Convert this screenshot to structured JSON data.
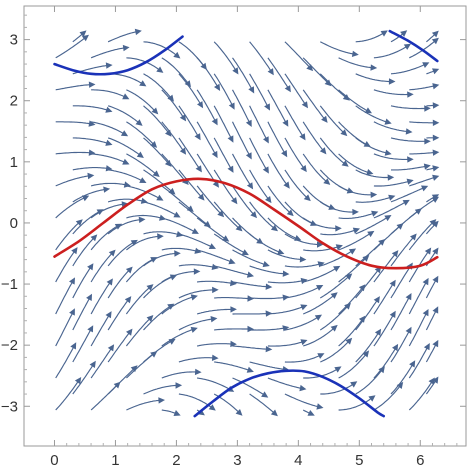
{
  "chart_data": {
    "type": "streamplot",
    "x_ticks": [
      "0",
      "1",
      "2",
      "3",
      "4",
      "5",
      "6"
    ],
    "y_ticks": [
      "3",
      "2",
      "1",
      "0",
      "−1",
      "−2",
      "−3"
    ],
    "x_tick_values": [
      0,
      1,
      2,
      3,
      4,
      5,
      6
    ],
    "y_tick_values": [
      3,
      2,
      1,
      0,
      -1,
      -2,
      -3
    ],
    "xlim": [
      -0.5,
      6.75
    ],
    "ylim": [
      -3.65,
      3.55
    ],
    "field": "dx = 1, dy = cos(x) - sin(y)",
    "stream_color": "#4a6590",
    "highlighted_curves": [
      {
        "color": "#cc1f1f",
        "points": [
          [
            0,
            -0.55
          ],
          [
            0.4,
            -0.3
          ],
          [
            0.8,
            0.0
          ],
          [
            1.2,
            0.3
          ],
          [
            1.6,
            0.55
          ],
          [
            2.0,
            0.68
          ],
          [
            2.4,
            0.72
          ],
          [
            2.8,
            0.65
          ],
          [
            3.2,
            0.48
          ],
          [
            3.6,
            0.22
          ],
          [
            4.0,
            -0.05
          ],
          [
            4.4,
            -0.33
          ],
          [
            4.8,
            -0.55
          ],
          [
            5.2,
            -0.7
          ],
          [
            5.6,
            -0.74
          ],
          [
            6.0,
            -0.7
          ],
          [
            6.28,
            -0.56
          ]
        ]
      },
      {
        "color": "#1a32b8",
        "points": [
          [
            0,
            2.6
          ],
          [
            0.3,
            2.5
          ],
          [
            0.6,
            2.44
          ],
          [
            0.9,
            2.44
          ],
          [
            1.2,
            2.5
          ],
          [
            1.5,
            2.63
          ],
          [
            1.8,
            2.82
          ],
          [
            2.1,
            3.05
          ]
        ]
      },
      {
        "color": "#1a32b8",
        "points": [
          [
            5.5,
            3.14
          ],
          [
            5.8,
            2.98
          ],
          [
            6.05,
            2.82
          ],
          [
            6.28,
            2.65
          ]
        ]
      },
      {
        "color": "#1a32b8",
        "points": [
          [
            2.3,
            -3.16
          ],
          [
            2.6,
            -2.92
          ],
          [
            2.9,
            -2.7
          ],
          [
            3.2,
            -2.55
          ],
          [
            3.5,
            -2.46
          ],
          [
            3.8,
            -2.42
          ],
          [
            4.1,
            -2.43
          ],
          [
            4.4,
            -2.52
          ],
          [
            4.7,
            -2.67
          ],
          [
            5.0,
            -2.87
          ],
          [
            5.3,
            -3.1
          ],
          [
            5.4,
            -3.16
          ]
        ]
      }
    ],
    "grid": false,
    "legend": "none"
  }
}
